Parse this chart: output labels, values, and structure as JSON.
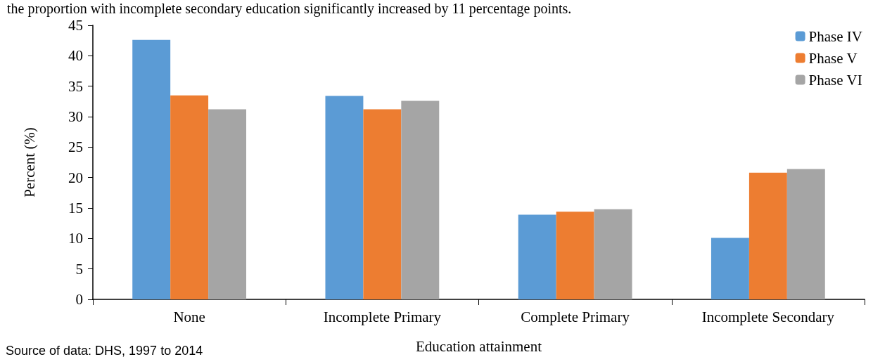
{
  "chart_data": {
    "type": "bar",
    "xlabel": "Education attainment",
    "ylabel": "Percent (%)",
    "categories": [
      "None",
      "Incomplete Primary",
      "Complete Primary",
      "Incomplete Secondary"
    ],
    "series": [
      {
        "name": "Phase IV",
        "color": "#5b9bd5",
        "values": [
          42.6,
          33.4,
          13.9,
          10.1
        ]
      },
      {
        "name": "Phase V",
        "color": "#ed7d31",
        "values": [
          33.5,
          31.2,
          14.4,
          20.8
        ]
      },
      {
        "name": "Phase VI",
        "color": "#a5a5a5",
        "values": [
          31.2,
          32.6,
          14.8,
          21.4
        ]
      }
    ],
    "ylim": [
      0,
      45
    ],
    "yticks": [
      0,
      5,
      10,
      15,
      20,
      25,
      30,
      35,
      40,
      45
    ],
    "grid": false,
    "legend": "top right",
    "annotations": [
      "the proportion with incomplete secondary education significantly increased by 11 percentage points.",
      "Source of data: DHS, 1997 to 2014"
    ]
  }
}
